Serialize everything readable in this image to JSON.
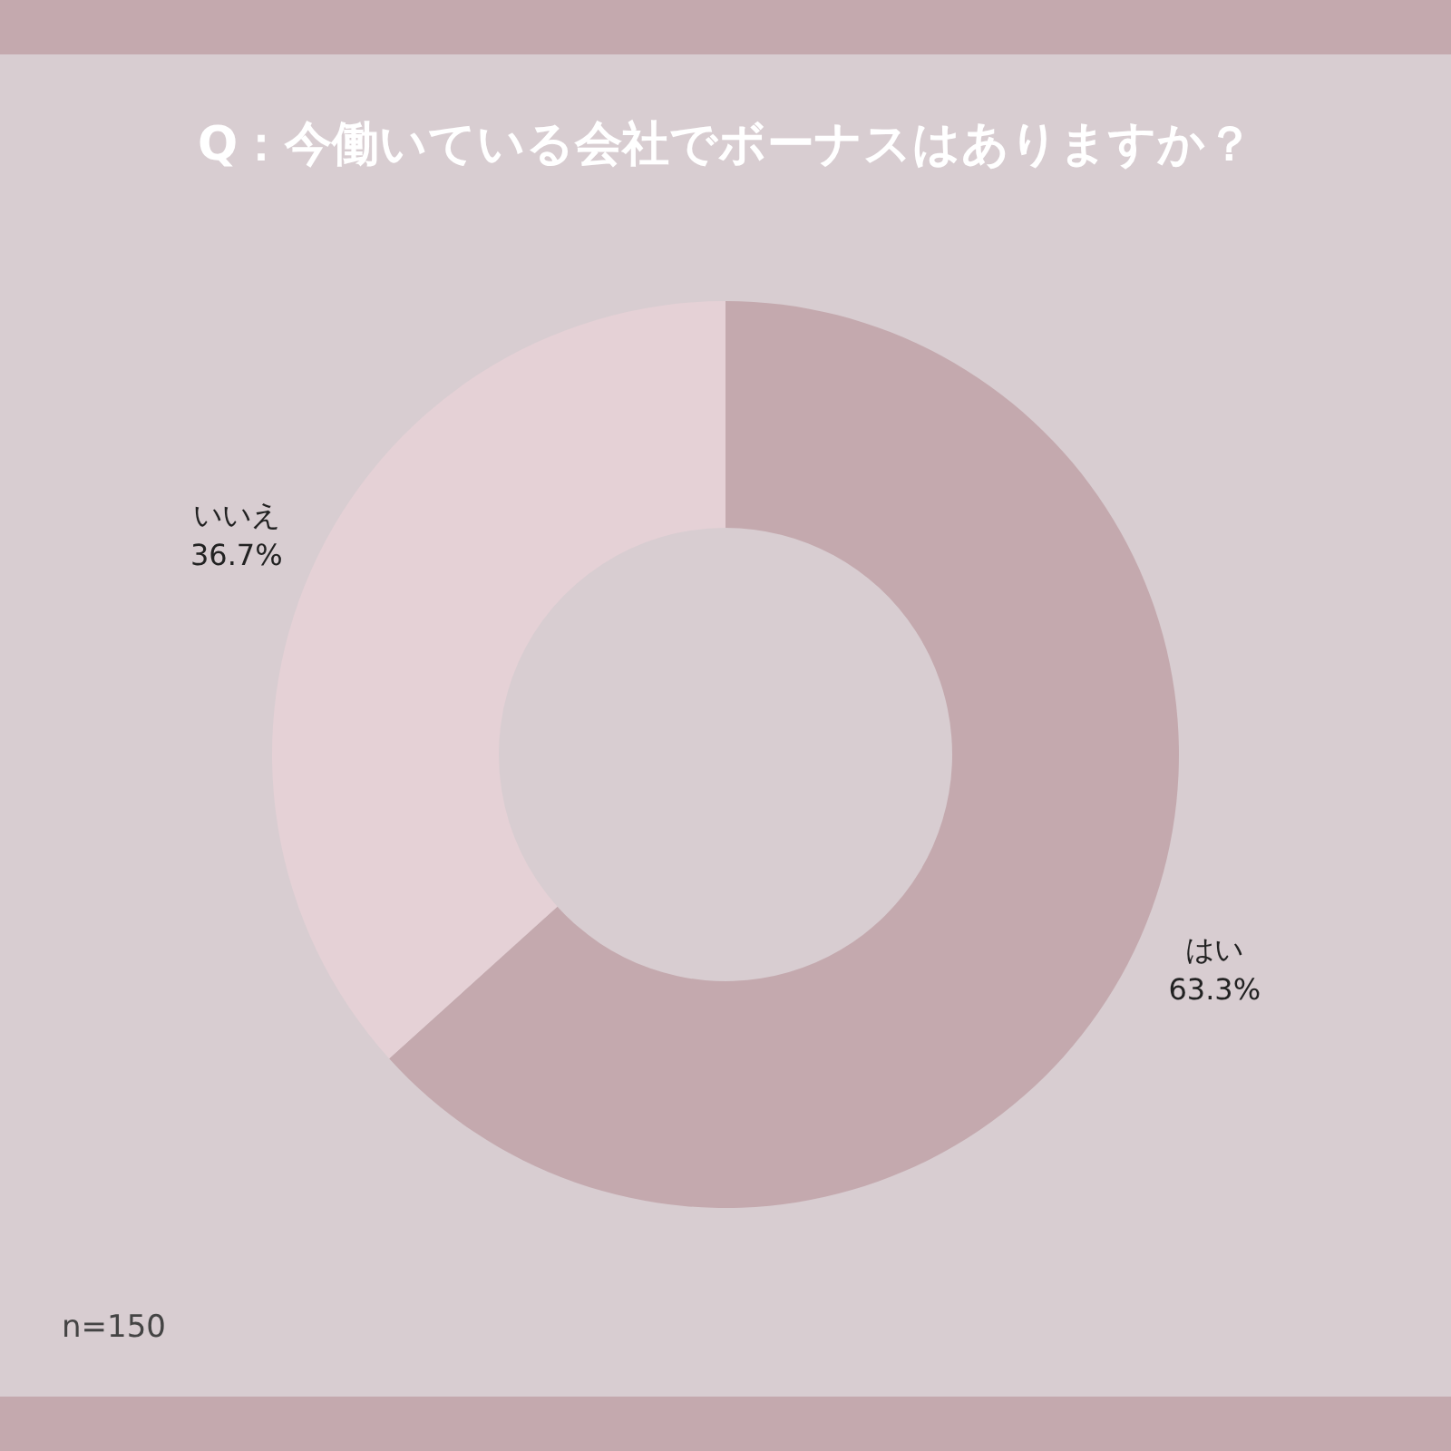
{
  "chart_data": {
    "type": "donut",
    "title": "Q：今働いている会社でボーナスはありますか？",
    "categories": [
      "はい",
      "いいえ"
    ],
    "values": [
      63.3,
      36.7
    ],
    "colors": [
      "#c4a9ae",
      "#e5d1d6"
    ],
    "value_labels": [
      "63.3%",
      "36.7%"
    ],
    "legend": false,
    "annotations": [
      "n=150"
    ]
  }
}
